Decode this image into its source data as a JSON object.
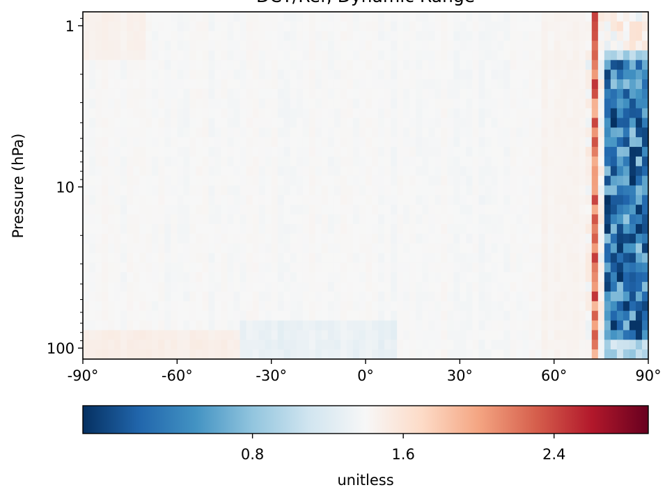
{
  "chart_data": {
    "type": "heatmap",
    "title": "DCT/Ref, Dynamic Range",
    "ylabel": "Pressure (hPa)",
    "xlabel": "",
    "x_range": [
      -90,
      90
    ],
    "y_range": [
      117,
      0.82
    ],
    "y_scale": "log",
    "x_ticks": [
      {
        "value": -90,
        "label": "-90°"
      },
      {
        "value": -60,
        "label": "-60°"
      },
      {
        "value": -30,
        "label": "-30°"
      },
      {
        "value": 0,
        "label": "0°"
      },
      {
        "value": 30,
        "label": "30°"
      },
      {
        "value": 60,
        "label": "60°"
      },
      {
        "value": 90,
        "label": "90°"
      }
    ],
    "y_ticks": [
      {
        "value": 1,
        "label": "1"
      },
      {
        "value": 10,
        "label": "10"
      },
      {
        "value": 100,
        "label": "100"
      }
    ],
    "colorbar": {
      "colormap": "RdBu_r",
      "range": [
        -0.1,
        2.9
      ],
      "center": 1.0,
      "label": "unitless",
      "orientation": "horizontal",
      "ticks": [
        {
          "value": 0.8,
          "label": "0.8"
        },
        {
          "value": 1.6,
          "label": "1.6"
        },
        {
          "value": 2.4,
          "label": "2.4"
        }
      ]
    },
    "grid": false,
    "description_of_field": "Values near 1.0 (white) over most latitudes; slight >1 (light red) bands near the bottom and top, slight <1 (light blue) near the equator at the bottom; strong red and dark-blue columns between 70° and 90° latitude."
  }
}
